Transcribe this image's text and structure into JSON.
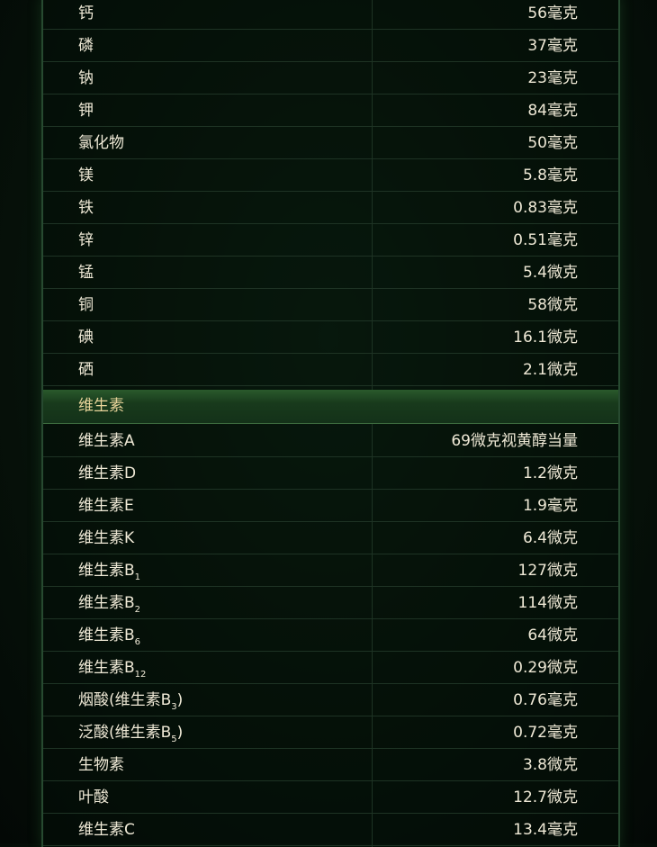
{
  "minerals": [
    {
      "name": "钙",
      "value": "56毫克"
    },
    {
      "name": "磷",
      "value": "37毫克"
    },
    {
      "name": "钠",
      "value": "23毫克"
    },
    {
      "name": "钾",
      "value": "84毫克"
    },
    {
      "name": "氯化物",
      "value": "50毫克"
    },
    {
      "name": "镁",
      "value": "5.8毫克"
    },
    {
      "name": "铁",
      "value": "0.83毫克"
    },
    {
      "name": "锌",
      "value": "0.51毫克"
    },
    {
      "name": "锰",
      "value": "5.4微克"
    },
    {
      "name": "铜",
      "value": "58微克"
    },
    {
      "name": "碘",
      "value": "16.1微克"
    },
    {
      "name": "硒",
      "value": "2.1微克"
    }
  ],
  "vitamin_section": {
    "title": "维生素"
  },
  "vitamins": [
    {
      "name": "维生素A",
      "value": "69微克视黄醇当量"
    },
    {
      "name": "维生素D",
      "value": "1.2微克"
    },
    {
      "name": "维生素E",
      "value": "1.9毫克"
    },
    {
      "name": "维生素K",
      "value": "6.4微克"
    },
    {
      "name": "维生素B",
      "sub": "1",
      "value": "127微克"
    },
    {
      "name": "维生素B",
      "sub": "2",
      "value": "114微克"
    },
    {
      "name": "维生素B",
      "sub": "6",
      "value": "64微克"
    },
    {
      "name": "维生素B",
      "sub": "12",
      "value": "0.29微克"
    },
    {
      "name": "烟酸(维生素B",
      "sub": "3",
      "suffix": ")",
      "value": "0.76毫克"
    },
    {
      "name": "泛酸(维生素B",
      "sub": "5",
      "suffix": ")",
      "value": "0.72毫克"
    },
    {
      "name": "生物素",
      "value": "3.8微克"
    },
    {
      "name": "叶酸",
      "value": "12.7微克"
    },
    {
      "name": "维生素C",
      "value": "13.4毫克"
    }
  ]
}
